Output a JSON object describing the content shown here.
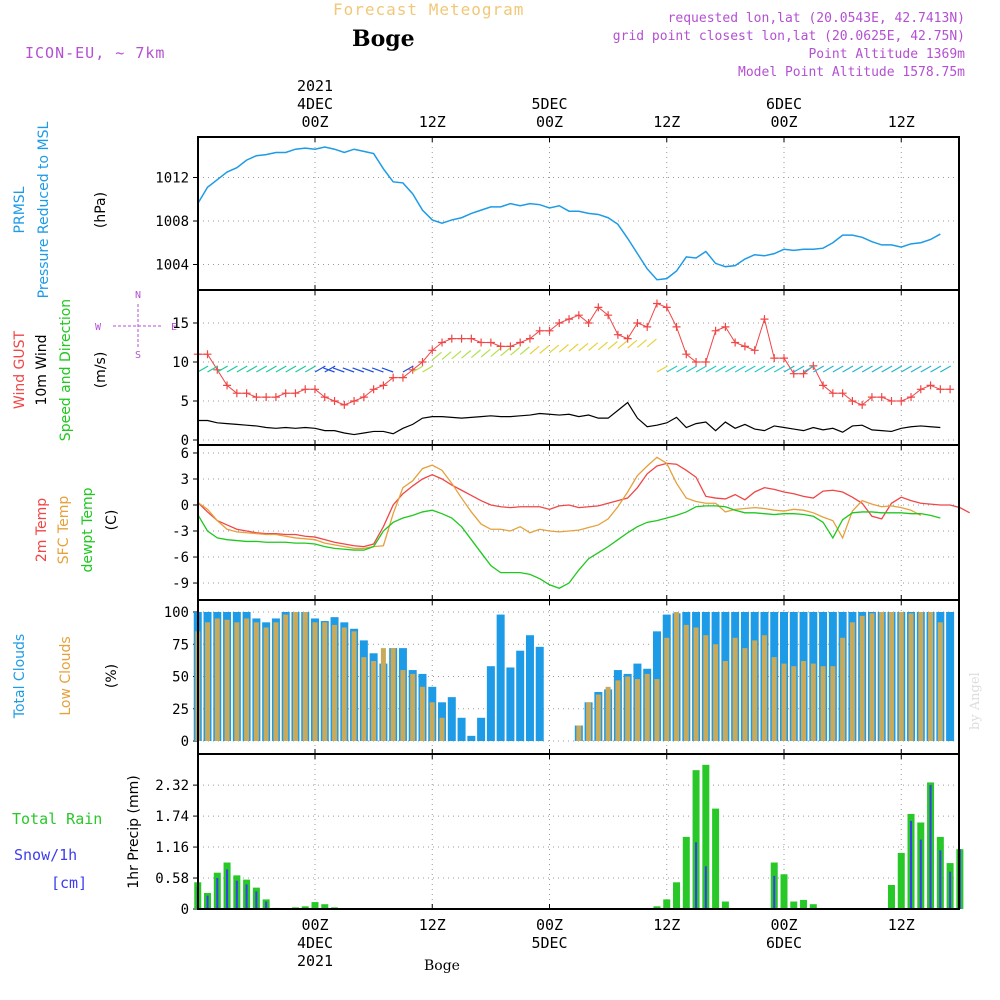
{
  "header": {
    "title": "Forecast Meteogram",
    "location": "Boge",
    "model": "ICON-EU, ~ 7km",
    "requested": "requested lon,lat (20.0543E, 42.7413N)",
    "gridpoint": "grid point closest lon,lat (20.0625E, 42.75N)",
    "point_alt": "Point Altitude 1369m",
    "model_alt": "Model Point Altitude 1578.75m",
    "footer_location": "Boge",
    "credit": "by Angel"
  },
  "time_axis": {
    "top_labels": [
      {
        "t": 0,
        "lines": [
          "2021",
          "4DEC",
          "00Z"
        ]
      },
      {
        "t": 12,
        "lines": [
          "12Z"
        ]
      },
      {
        "t": 24,
        "lines": [
          "5DEC",
          "00Z"
        ]
      },
      {
        "t": 36,
        "lines": [
          "12Z"
        ]
      },
      {
        "t": 48,
        "lines": [
          "6DEC",
          "00Z"
        ]
      },
      {
        "t": 60,
        "lines": [
          "12Z"
        ]
      }
    ],
    "bottom_labels": [
      {
        "t": 0,
        "lines": [
          "00Z",
          "4DEC",
          "2021"
        ]
      },
      {
        "t": 12,
        "lines": [
          "12Z"
        ]
      },
      {
        "t": 24,
        "lines": [
          "00Z",
          "5DEC"
        ]
      },
      {
        "t": 36,
        "lines": [
          "12Z"
        ]
      },
      {
        "t": 48,
        "lines": [
          "00Z",
          "6DEC"
        ]
      },
      {
        "t": 60,
        "lines": [
          "12Z"
        ]
      }
    ]
  },
  "colors": {
    "pressure": "#1e9be6",
    "gust": "#f04646",
    "wind": "#000000",
    "temp2m": "#f04646",
    "sfc": "#e6a03c",
    "dewpt": "#1ec81e",
    "total_clouds": "#1e9be6",
    "low_clouds": "#c8aa5a",
    "rain": "#28c828",
    "snow": "#3c3cf0",
    "purple": "#b450d2",
    "title": "#f0c878"
  },
  "panels": {
    "pressure": {
      "labels": [
        "PRMSL",
        "Pressure Reduced to MSL"
      ],
      "unit": "(hPa)"
    },
    "wind": {
      "labels": [
        "Wind GUST",
        "10m Wind",
        "Speed and Direction"
      ],
      "unit": "(m/s)",
      "compass": {
        "n": "N",
        "s": "S",
        "e": "E",
        "w": "W"
      }
    },
    "temp": {
      "labels": [
        "2m Temp",
        "SFC Temp",
        "dewpt Temp"
      ],
      "unit": "(C)"
    },
    "clouds": {
      "labels": [
        "Total Clouds",
        "Low Clouds"
      ],
      "unit": "(%)"
    },
    "precip": {
      "labels": [
        "Total  Rain",
        "Snow/1h",
        "[cm]"
      ],
      "unit": "1hr Precip (mm)"
    }
  },
  "chart_data": [
    {
      "type": "line",
      "title": "PRMSL Pressure Reduced to MSL",
      "ylabel": "(hPa)",
      "ylim": [
        1002,
        1016
      ],
      "yticks": [
        1004,
        1008,
        1012
      ],
      "x_start": -12,
      "x_step": 1,
      "series": [
        {
          "name": "PRMSL Pressure Reduced to MSL",
          "values": [
            1009.6,
            1011.1,
            1011.8,
            1012.5,
            1012.9,
            1013.6,
            1014.0,
            1014.1,
            1014.3,
            1014.3,
            1014.6,
            1014.7,
            1014.6,
            1014.8,
            1014.6,
            1014.3,
            1014.6,
            1014.4,
            1014.2,
            1012.8,
            1011.6,
            1011.5,
            1010.5,
            1009.0,
            1008.1,
            1007.8,
            1008.1,
            1008.3,
            1008.7,
            1009.0,
            1009.3,
            1009.3,
            1009.6,
            1009.4,
            1009.6,
            1009.5,
            1009.2,
            1009.4,
            1008.9,
            1008.9,
            1008.7,
            1008.6,
            1008.3,
            1007.7,
            1006.4,
            1005.0,
            1003.6,
            1002.6,
            1002.7,
            1003.4,
            1004.7,
            1004.6,
            1005.2,
            1004.1,
            1003.8,
            1003.9,
            1004.5,
            1004.9,
            1004.8,
            1005.0,
            1005.4,
            1005.3,
            1005.4,
            1005.4,
            1005.5,
            1006.0,
            1006.7,
            1006.7,
            1006.5,
            1006.1,
            1005.8,
            1005.8,
            1005.6,
            1005.9,
            1006.0,
            1006.3,
            1006.8
          ]
        }
      ]
    },
    {
      "type": "line",
      "title": "Wind GUST / 10m Wind Speed and Direction",
      "ylabel": "(m/s)",
      "ylim": [
        0,
        18
      ],
      "yticks": [
        0,
        5,
        10,
        15
      ],
      "x_start": -12,
      "x_step": 1,
      "series": [
        {
          "name": "Wind GUST",
          "values": [
            11,
            11,
            9,
            7,
            6,
            6,
            5.5,
            5.5,
            5.5,
            6,
            6,
            6.5,
            6.5,
            5.5,
            5,
            4.5,
            5,
            5.5,
            6.5,
            7,
            8,
            8,
            9,
            10,
            11.5,
            12.5,
            13,
            13,
            13,
            12.5,
            12.5,
            12,
            12,
            12.5,
            13,
            14,
            14,
            15,
            15.5,
            16,
            15,
            17,
            16,
            13.5,
            13,
            15,
            14.5,
            17.5,
            17,
            14.5,
            11,
            10,
            10,
            14,
            14.5,
            12.5,
            12,
            11.5,
            15.5,
            10.5,
            10.5,
            8.5,
            8.5,
            9.5,
            7,
            6,
            6,
            5,
            4.5,
            5.5,
            5.5,
            5,
            5,
            5.5,
            6.5,
            7,
            6.5,
            6.5
          ]
        },
        {
          "name": "10m Wind",
          "values": [
            2.5,
            2.5,
            2.2,
            2.1,
            2,
            1.9,
            1.8,
            1.6,
            1.5,
            1.6,
            1.5,
            1.6,
            1.5,
            1.2,
            1.2,
            0.9,
            0.7,
            0.9,
            1.1,
            1.1,
            0.8,
            1.5,
            2,
            2.8,
            3,
            3,
            2.9,
            2.8,
            2.9,
            3,
            3.1,
            3,
            3,
            3.1,
            3.2,
            3.4,
            3.3,
            3.2,
            3.3,
            3,
            3.2,
            2.8,
            2.8,
            3.8,
            4.8,
            2.8,
            1.7,
            1.9,
            2.2,
            2.9,
            1.6,
            2.1,
            2.3,
            1.2,
            2.3,
            1.5,
            2,
            1.4,
            1.2,
            1.8,
            1.6,
            1.4,
            1.2,
            1.6,
            1.3,
            1.5,
            1,
            1.8,
            1.9,
            1.3,
            1.2,
            1.1,
            1.5,
            1.7,
            1.8,
            1.7,
            1.6
          ]
        }
      ]
    },
    {
      "type": "line",
      "title": "2m Temp / SFC Temp / dewpt Temp",
      "ylabel": "(C)",
      "ylim": [
        -10.5,
        6
      ],
      "yticks": [
        -9,
        -6,
        -3,
        0,
        3,
        6
      ],
      "x_start": -12,
      "x_step": 1,
      "series": [
        {
          "name": "2m Temp",
          "values": [
            0.3,
            -0.8,
            -1.8,
            -2.3,
            -2.8,
            -3.0,
            -3.2,
            -3.3,
            -3.3,
            -3.4,
            -3.4,
            -3.6,
            -3.7,
            -4.0,
            -4.3,
            -4.5,
            -4.7,
            -4.8,
            -4.5,
            -2.5,
            0.0,
            1.3,
            2.2,
            3.0,
            3.5,
            3.0,
            2.3,
            1.7,
            1.1,
            0.5,
            0.0,
            -0.2,
            -0.3,
            -0.2,
            -0.2,
            -0.2,
            -0.5,
            -0.1,
            0.0,
            -0.3,
            -0.2,
            -0.1,
            0.2,
            0.5,
            0.8,
            2.0,
            3.6,
            4.5,
            4.8,
            4.7,
            4.0,
            3.2,
            1.0,
            0.8,
            0.7,
            1.2,
            0.6,
            1.5,
            2.0,
            1.8,
            1.5,
            1.3,
            1.0,
            0.8,
            1.6,
            1.7,
            1.5,
            0.9,
            0.2,
            -1.3,
            -1.6,
            0.2,
            0.9,
            0.5,
            0.2,
            0.1,
            0.0,
            0.0,
            -0.3,
            -0.9
          ]
        },
        {
          "name": "SFC Temp",
          "values": [
            0.3,
            -0.5,
            -1.8,
            -2.8,
            -3.1,
            -3.2,
            -3.3,
            -3.4,
            -3.4,
            -3.6,
            -3.8,
            -3.9,
            -4.0,
            -4.4,
            -4.6,
            -4.8,
            -5.0,
            -5.0,
            -4.8,
            -4.7,
            -1.0,
            2.0,
            2.8,
            4.2,
            4.6,
            4.0,
            2.5,
            0.8,
            -0.8,
            -2.2,
            -2.8,
            -2.8,
            -3.0,
            -2.5,
            -3.2,
            -2.8,
            -3.0,
            -3.1,
            -3.0,
            -2.9,
            -2.6,
            -2.3,
            -1.6,
            -0.2,
            1.5,
            3.4,
            4.5,
            5.5,
            4.8,
            2.5,
            0.8,
            0.4,
            0.2,
            0.2,
            -0.8,
            -0.5,
            -0.4,
            -0.3,
            -0.4,
            -0.6,
            -0.7,
            -0.5,
            -0.6,
            -0.9,
            -1.4,
            -1.8,
            -3.8,
            -0.7,
            0.5,
            0.1,
            -0.2,
            -0.1,
            -0.3,
            -0.6,
            -1.2
          ]
        },
        {
          "name": "dewpt Temp",
          "values": [
            -1.1,
            -3.0,
            -3.8,
            -4.0,
            -4.1,
            -4.2,
            -4.2,
            -4.3,
            -4.3,
            -4.3,
            -4.4,
            -4.4,
            -4.5,
            -4.8,
            -5.0,
            -5.1,
            -5.2,
            -5.2,
            -4.8,
            -3.0,
            -2.0,
            -1.5,
            -1.2,
            -0.8,
            -0.6,
            -1.0,
            -1.5,
            -2.5,
            -4.0,
            -5.5,
            -7.0,
            -7.8,
            -7.8,
            -7.8,
            -8.0,
            -8.5,
            -9.2,
            -9.6,
            -9.0,
            -7.5,
            -6.2,
            -5.5,
            -4.8,
            -4.0,
            -3.2,
            -2.5,
            -2.0,
            -1.8,
            -1.5,
            -1.2,
            -0.8,
            -0.2,
            -0.1,
            -0.1,
            -0.2,
            -0.6,
            -0.9,
            -0.9,
            -1.0,
            -1.1,
            -1.0,
            -1.0,
            -1.1,
            -1.3,
            -2.0,
            -3.8,
            -1.7,
            -0.9,
            -0.8,
            -0.8,
            -0.9,
            -0.9,
            -0.9,
            -1.0,
            -1.0,
            -1.2,
            -1.5
          ]
        }
      ]
    },
    {
      "type": "bar",
      "title": "Total Clouds / Low Clouds",
      "ylabel": "(%)",
      "ylim": [
        0,
        100
      ],
      "yticks": [
        0,
        25,
        50,
        75,
        100
      ],
      "x_start": -12,
      "x_step": 1,
      "series": [
        {
          "name": "Total Clouds",
          "values": [
            100,
            100,
            100,
            100,
            100,
            100,
            95,
            92,
            95,
            100,
            100,
            100,
            95,
            93,
            96,
            92,
            87,
            78,
            68,
            60,
            72,
            72,
            55,
            52,
            42,
            30,
            34,
            18,
            4,
            18,
            58,
            98,
            57,
            70,
            82,
            73,
            0,
            0,
            0,
            12,
            30,
            38,
            40,
            55,
            52,
            60,
            56,
            85,
            98,
            99,
            100,
            100,
            100,
            100,
            100,
            100,
            100,
            100,
            100,
            100,
            100,
            100,
            100,
            100,
            100,
            100,
            100,
            100,
            100,
            100,
            100,
            100,
            100,
            100,
            100,
            100,
            100,
            100
          ]
        },
        {
          "name": "Low Clouds",
          "values": [
            85,
            92,
            95,
            94,
            92,
            95,
            92,
            88,
            92,
            98,
            100,
            100,
            92,
            92,
            90,
            88,
            85,
            65,
            62,
            72,
            72,
            55,
            52,
            42,
            30,
            18,
            0,
            0,
            0,
            0,
            0,
            0,
            0,
            0,
            0,
            0,
            0,
            0,
            0,
            12,
            30,
            36,
            42,
            47,
            50,
            48,
            52,
            48,
            80,
            100,
            90,
            88,
            82,
            75,
            62,
            80,
            72,
            78,
            82,
            65,
            60,
            58,
            62,
            60,
            58,
            58,
            80,
            92,
            97,
            99,
            100,
            100,
            100,
            99,
            100,
            100,
            92
          ]
        }
      ]
    },
    {
      "type": "bar",
      "title": "1hr Precip (mm)",
      "ylabel": "1hr Precip (mm)",
      "ylim": [
        0,
        3
      ],
      "yticks": [
        0,
        0.58,
        1.16,
        1.74,
        2.32
      ],
      "x_start": -12,
      "x_step": 1,
      "series": [
        {
          "name": "Total  Rain",
          "values": [
            0.5,
            0.3,
            0.68,
            0.87,
            0.63,
            0.55,
            0.4,
            0.18,
            0.02,
            0.0,
            0.03,
            0.05,
            0.13,
            0.09,
            0.03,
            0,
            0,
            0,
            0,
            0,
            0,
            0,
            0,
            0,
            0,
            0,
            0,
            0,
            0,
            0,
            0,
            0,
            0,
            0,
            0,
            0,
            0,
            0,
            0,
            0,
            0,
            0,
            0,
            0,
            0,
            0,
            0,
            0.05,
            0.18,
            0.5,
            1.35,
            2.6,
            2.7,
            1.88,
            0.14,
            0,
            0,
            0,
            0,
            0.87,
            0.65,
            0.14,
            0.17,
            0.09,
            0,
            0,
            0,
            0,
            0,
            0,
            0,
            0.45,
            1.05,
            1.78,
            1.62,
            2.37,
            1.35,
            0.86,
            1.12
          ]
        },
        {
          "name": "Snow/1h",
          "values": [
            0.42,
            0.25,
            0.58,
            0.74,
            0.53,
            0.46,
            0.33,
            0.14,
            0,
            0,
            0,
            0,
            0,
            0,
            0,
            0,
            0,
            0,
            0,
            0,
            0,
            0,
            0,
            0,
            0,
            0,
            0,
            0,
            0,
            0,
            0,
            0,
            0,
            0,
            0,
            0,
            0,
            0,
            0,
            0,
            0,
            0,
            0,
            0,
            0,
            0,
            0,
            0,
            0,
            0,
            0,
            1.25,
            0.8,
            0,
            0,
            0,
            0,
            0,
            0,
            0.62,
            0,
            0,
            0,
            0,
            0,
            0,
            0,
            0,
            0,
            0,
            0,
            0,
            0,
            1.65,
            1.3,
            2.32,
            1.1,
            0.7,
            1.12
          ]
        }
      ]
    }
  ]
}
